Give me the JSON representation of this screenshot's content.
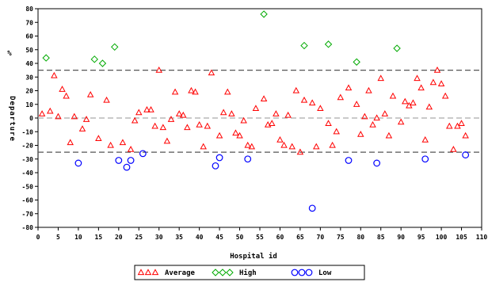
{
  "chart_data": {
    "type": "scatter",
    "xlabel": "Hospital id",
    "ylabel_top": "%",
    "ylabel": "Departure",
    "xlim": [
      0,
      110
    ],
    "ylim": [
      -80,
      80
    ],
    "xticks": [
      0,
      5,
      10,
      15,
      20,
      25,
      30,
      35,
      40,
      45,
      50,
      55,
      60,
      65,
      70,
      75,
      80,
      85,
      90,
      95,
      100,
      105,
      110
    ],
    "yticks": [
      80,
      70,
      60,
      50,
      40,
      30,
      20,
      10,
      0,
      -10,
      -20,
      -30,
      -40,
      -50,
      -60,
      -70,
      -80
    ],
    "reference_lines": [
      {
        "y": 35,
        "style": "dashed",
        "color": "#555555"
      },
      {
        "y": 0,
        "style": "dashed",
        "color": "#aaaaaa"
      },
      {
        "y": -25,
        "style": "dashed",
        "color": "#555555"
      }
    ],
    "legend_position": "bottom",
    "series": [
      {
        "name": "Average",
        "marker": "triangle",
        "color": "#ff0000",
        "points": [
          [
            1,
            3
          ],
          [
            3,
            5
          ],
          [
            4,
            31
          ],
          [
            5,
            1
          ],
          [
            6,
            21
          ],
          [
            7,
            16
          ],
          [
            8,
            -18
          ],
          [
            9,
            1
          ],
          [
            11,
            -8
          ],
          [
            12,
            -1
          ],
          [
            13,
            17
          ],
          [
            15,
            -15
          ],
          [
            17,
            13
          ],
          [
            18,
            -20
          ],
          [
            21,
            -18
          ],
          [
            23,
            -23
          ],
          [
            24,
            -2
          ],
          [
            25,
            4
          ],
          [
            27,
            6
          ],
          [
            28,
            6
          ],
          [
            29,
            -6
          ],
          [
            30,
            35
          ],
          [
            31,
            -7
          ],
          [
            32,
            -17
          ],
          [
            33,
            -1
          ],
          [
            34,
            19
          ],
          [
            35,
            3
          ],
          [
            36,
            2
          ],
          [
            37,
            -7
          ],
          [
            38,
            20
          ],
          [
            39,
            19
          ],
          [
            40,
            -5
          ],
          [
            41,
            -21
          ],
          [
            42,
            -6
          ],
          [
            43,
            33
          ],
          [
            45,
            -13
          ],
          [
            46,
            4
          ],
          [
            47,
            19
          ],
          [
            48,
            3
          ],
          [
            49,
            -11
          ],
          [
            50,
            -13
          ],
          [
            51,
            -2
          ],
          [
            52,
            -20
          ],
          [
            53,
            -21
          ],
          [
            54,
            7
          ],
          [
            56,
            14
          ],
          [
            57,
            -5
          ],
          [
            58,
            -4
          ],
          [
            59,
            3
          ],
          [
            60,
            -16
          ],
          [
            61,
            -20
          ],
          [
            62,
            2
          ],
          [
            63,
            -21
          ],
          [
            64,
            20
          ],
          [
            65,
            -25
          ],
          [
            66,
            13
          ],
          [
            68,
            11
          ],
          [
            69,
            -21
          ],
          [
            70,
            7
          ],
          [
            72,
            -4
          ],
          [
            73,
            -20
          ],
          [
            74,
            -10
          ],
          [
            75,
            15
          ],
          [
            77,
            22
          ],
          [
            79,
            10
          ],
          [
            80,
            -12
          ],
          [
            81,
            1
          ],
          [
            82,
            20
          ],
          [
            83,
            -5
          ],
          [
            84,
            0
          ],
          [
            85,
            29
          ],
          [
            86,
            3
          ],
          [
            87,
            -13
          ],
          [
            88,
            16
          ],
          [
            90,
            -3
          ],
          [
            91,
            12
          ],
          [
            92,
            9
          ],
          [
            93,
            11
          ],
          [
            94,
            29
          ],
          [
            95,
            22
          ],
          [
            96,
            -16
          ],
          [
            97,
            8
          ],
          [
            98,
            26
          ],
          [
            99,
            35
          ],
          [
            100,
            25
          ],
          [
            101,
            16
          ],
          [
            102,
            -6
          ],
          [
            103,
            -23
          ],
          [
            104,
            -6
          ],
          [
            105,
            -4
          ],
          [
            106,
            -13
          ]
        ]
      },
      {
        "name": "High",
        "marker": "diamond",
        "color": "#00aa00",
        "points": [
          [
            2,
            44
          ],
          [
            14,
            43
          ],
          [
            16,
            40
          ],
          [
            19,
            52
          ],
          [
            56,
            76
          ],
          [
            66,
            53
          ],
          [
            72,
            54
          ],
          [
            79,
            41
          ],
          [
            89,
            51
          ]
        ]
      },
      {
        "name": "Low",
        "marker": "circle",
        "color": "#0000ff",
        "points": [
          [
            10,
            -33
          ],
          [
            20,
            -31
          ],
          [
            22,
            -36
          ],
          [
            23,
            -31
          ],
          [
            26,
            -26
          ],
          [
            44,
            -35
          ],
          [
            45,
            -29
          ],
          [
            52,
            -30
          ],
          [
            68,
            -66
          ],
          [
            77,
            -31
          ],
          [
            84,
            -33
          ],
          [
            96,
            -30
          ],
          [
            106,
            -27
          ]
        ]
      }
    ]
  }
}
